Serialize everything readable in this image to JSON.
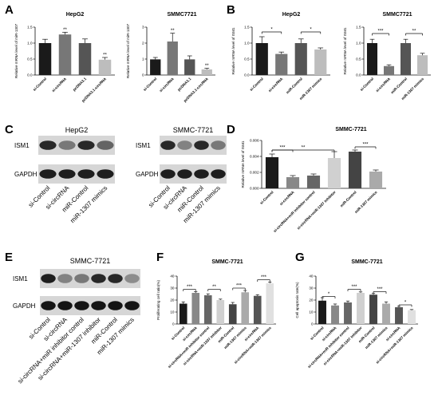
{
  "panels": [
    {
      "letter": "A"
    },
    {
      "letter": "B"
    },
    {
      "letter": "C"
    },
    {
      "letter": "D"
    },
    {
      "letter": "E"
    },
    {
      "letter": "F"
    },
    {
      "letter": "G"
    }
  ],
  "chart_data": [
    {
      "id": "A1",
      "type": "bar",
      "title": "HepG2",
      "ylabel": "Relative mRNA level of miR-1307",
      "ylim": [
        0,
        1.5
      ],
      "yticks": [
        "0.0",
        "0.5",
        "1.0",
        "1.5"
      ],
      "categories": [
        "si-Control",
        "si-circRNA",
        "pcDNA3.1",
        "pcDNA3.1-circRNA"
      ],
      "values": [
        1.0,
        1.27,
        1.0,
        0.48
      ],
      "errors": [
        0.12,
        0.07,
        0.13,
        0.07
      ],
      "colors": [
        "#1a1a1a",
        "#777777",
        "#555555",
        "#bdbdbd"
      ],
      "bar_stars": [
        "",
        "**",
        "",
        "**"
      ],
      "sig": []
    },
    {
      "id": "A2",
      "type": "bar",
      "title": "SMMC7721",
      "ylabel": "Relative mRNA level of miR-1307",
      "ylim": [
        0,
        3
      ],
      "yticks": [
        "0",
        "1",
        "2",
        "3"
      ],
      "categories": [
        "si-Control",
        "si-circRNA",
        "pcDNA3.1",
        "pcDNA3.1-circRNA"
      ],
      "values": [
        0.98,
        2.1,
        0.98,
        0.35
      ],
      "errors": [
        0.12,
        0.52,
        0.22,
        0.07
      ],
      "colors": [
        "#1a1a1a",
        "#777777",
        "#555555",
        "#bdbdbd"
      ],
      "bar_stars": [
        "",
        "**",
        "",
        "**"
      ],
      "sig": []
    },
    {
      "id": "B1",
      "type": "bar",
      "title": "HepG2",
      "ylabel": "Relative mRNA level of ISM1",
      "ylim": [
        0,
        1.5
      ],
      "yticks": [
        "0.0",
        "0.5",
        "1.0",
        "1.5"
      ],
      "categories": [
        "si-Control",
        "si-circRNA",
        "miR-Control",
        "miR-1307 mimics"
      ],
      "values": [
        1.0,
        0.66,
        1.0,
        0.8
      ],
      "errors": [
        0.2,
        0.06,
        0.13,
        0.05
      ],
      "colors": [
        "#1a1a1a",
        "#777777",
        "#555555",
        "#bdbdbd"
      ],
      "bar_stars": [
        "",
        "",
        "",
        ""
      ],
      "sig": [
        {
          "from": 0,
          "to": 1,
          "label": "*",
          "y": 1.35
        },
        {
          "from": 2,
          "to": 3,
          "label": "*",
          "y": 1.35
        }
      ]
    },
    {
      "id": "B2",
      "type": "bar",
      "title": "SMMC7721",
      "ylabel": "Relative mRNA level of ISM1",
      "ylim": [
        0,
        1.5
      ],
      "yticks": [
        "0.0",
        "0.5",
        "1.0",
        "1.5"
      ],
      "categories": [
        "si-Control",
        "si-circRNA",
        "miR-Control",
        "miR-1307 mimics"
      ],
      "values": [
        1.0,
        0.28,
        1.0,
        0.62
      ],
      "errors": [
        0.12,
        0.04,
        0.12,
        0.06
      ],
      "colors": [
        "#1a1a1a",
        "#777777",
        "#555555",
        "#bdbdbd"
      ],
      "bar_stars": [
        "",
        "",
        "",
        ""
      ],
      "sig": [
        {
          "from": 0,
          "to": 1,
          "label": "***",
          "y": 1.3
        },
        {
          "from": 2,
          "to": 3,
          "label": "**",
          "y": 1.3
        }
      ]
    },
    {
      "id": "D",
      "type": "bar",
      "title": "SMMC-7721",
      "ylabel": "Relative mRNA level of ISM1",
      "ylim": [
        0,
        0.006
      ],
      "yticks": [
        "0.000",
        "0.002",
        "0.004",
        "0.006"
      ],
      "categories": [
        "si-Control",
        "si-circRNA",
        "si-circRNA+miR inhibitor control",
        "si-circRNA+miR-1307 inhibitor",
        "miR-Control",
        "miR-1307 mimics"
      ],
      "values": [
        0.0039,
        0.0014,
        0.0016,
        0.0038,
        0.0046,
        0.0021
      ],
      "errors": [
        0.0004,
        0.0002,
        0.0002,
        0.0008,
        0.0002,
        0.0002
      ],
      "colors": [
        "#1a1a1a",
        "#888888",
        "#666666",
        "#d0d0d0",
        "#444444",
        "#aaaaaa"
      ],
      "bar_stars": [
        "",
        "",
        "",
        "",
        "",
        ""
      ],
      "sig": [
        {
          "from": 0,
          "to": 1,
          "label": "***",
          "y": 0.0048
        },
        {
          "from": 0,
          "to": 3,
          "label": "**",
          "y": 0.0048
        },
        {
          "from": 4,
          "to": 5,
          "label": "***",
          "y": 0.0052
        }
      ]
    },
    {
      "id": "F",
      "type": "bar",
      "title": "SMMC-7721",
      "ylabel": "Proliferating cell ratio(%)",
      "ylim": [
        0,
        40
      ],
      "yticks": [
        "0",
        "10",
        "20",
        "30",
        "40"
      ],
      "categories": [
        "si-Control",
        "si-circRNA",
        "si-circRNA+miR inhibitor control",
        "si-circRNA+miR-1307 inhibitor",
        "miR-Control",
        "miR-1307 mimics",
        "si-circRNA",
        "si-circRNA+miR-1307 mimics"
      ],
      "values": [
        17,
        26,
        24,
        20,
        16.5,
        26.5,
        23.5,
        34
      ],
      "errors": [
        1.5,
        1.0,
        1.2,
        0.8,
        1.5,
        1.5,
        1.0,
        1.0
      ],
      "colors": [
        "#1a1a1a",
        "#888888",
        "#666666",
        "#d0d0d0",
        "#444444",
        "#aaaaaa",
        "#555555",
        "#e0e0e0"
      ],
      "bar_stars": [
        "",
        "",
        "",
        "",
        "",
        "",
        "",
        ""
      ],
      "sig": [
        {
          "from": 0,
          "to": 1,
          "label": "***",
          "y": 29
        },
        {
          "from": 2,
          "to": 3,
          "label": "**",
          "y": 29
        },
        {
          "from": 4,
          "to": 5,
          "label": "***",
          "y": 30
        },
        {
          "from": 6,
          "to": 7,
          "label": "***",
          "y": 37
        }
      ]
    },
    {
      "id": "G",
      "type": "bar",
      "title": "SMMC-7721",
      "ylabel": "Cell apoptosis rate(%)",
      "ylim": [
        0,
        40
      ],
      "yticks": [
        "0",
        "10",
        "20",
        "30",
        "40"
      ],
      "categories": [
        "si-Control",
        "si-circRNA",
        "si-circRNA+miR inhibitor control",
        "si-circRNA+miR-1307 inhibitor",
        "miR-Control",
        "miR-1307 mimics",
        "si-circRNA",
        "si-circRNA+miR-1307 mimics"
      ],
      "values": [
        19.5,
        15.5,
        18,
        26,
        24.5,
        17,
        14,
        11.5
      ],
      "errors": [
        2.5,
        1.2,
        1.2,
        0.8,
        1.0,
        1.5,
        0.8,
        0.6
      ],
      "colors": [
        "#1a1a1a",
        "#888888",
        "#666666",
        "#d0d0d0",
        "#444444",
        "#aaaaaa",
        "#555555",
        "#e0e0e0"
      ],
      "bar_stars": [
        "",
        "",
        "",
        "",
        "",
        "",
        "",
        ""
      ],
      "sig": [
        {
          "from": 0,
          "to": 1,
          "label": "*",
          "y": 23
        },
        {
          "from": 2,
          "to": 3,
          "label": "***",
          "y": 29
        },
        {
          "from": 4,
          "to": 5,
          "label": "***",
          "y": 27
        },
        {
          "from": 6,
          "to": 7,
          "label": "*",
          "y": 16
        }
      ]
    }
  ],
  "blots": [
    {
      "id": "C1",
      "title": "HepG2",
      "rows": [
        "ISM1",
        "GAPDH"
      ],
      "lanes": [
        "si-Control",
        "si-circRNA",
        "miR-Control",
        "miR-1307 mimics"
      ],
      "intensity": [
        [
          0.85,
          0.45,
          0.85,
          0.55
        ],
        [
          0.9,
          0.9,
          0.9,
          0.9
        ]
      ]
    },
    {
      "id": "C2",
      "title": "SMMC-7721",
      "rows": [
        "ISM1",
        "GAPDH"
      ],
      "lanes": [
        "si-Control",
        "si-circRNA",
        "miR-Control",
        "miR-1307 mimics"
      ],
      "intensity": [
        [
          0.85,
          0.4,
          0.85,
          0.45
        ],
        [
          0.9,
          0.9,
          0.9,
          0.9
        ]
      ]
    },
    {
      "id": "E",
      "title": "SMMC-7721",
      "rows": [
        "ISM1",
        "GAPDH"
      ],
      "lanes": [
        "si-Control",
        "si-circRNA",
        "si-circRNA+miR inhibitor control",
        "si-circRNA+miR-1307 inhibitor",
        "miR-Control",
        "miR-1307 mimics"
      ],
      "intensity": [
        [
          0.9,
          0.4,
          0.45,
          0.85,
          0.85,
          0.35
        ],
        [
          0.95,
          0.95,
          0.95,
          0.95,
          0.95,
          0.95
        ]
      ]
    }
  ]
}
